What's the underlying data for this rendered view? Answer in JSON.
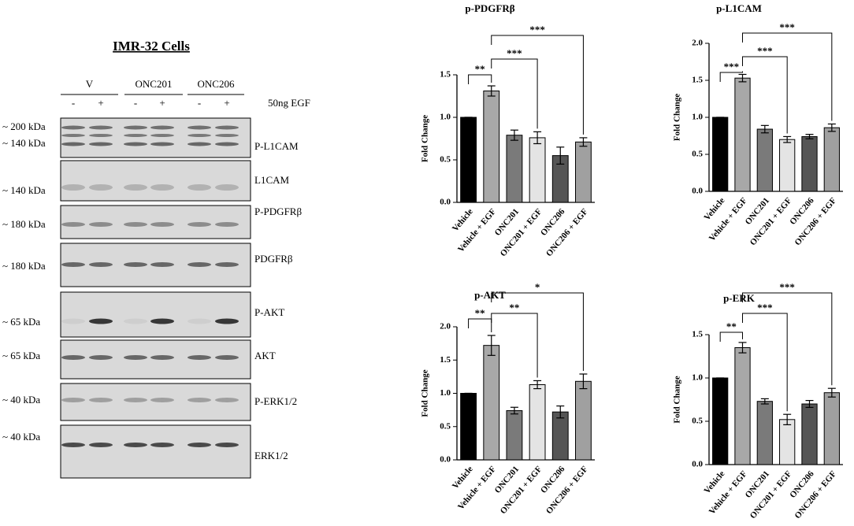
{
  "blot": {
    "title": "IMR-32 Cells",
    "groups": [
      "V",
      "ONC201",
      "ONC206"
    ],
    "lanes": [
      "-",
      "+",
      "-",
      "+",
      "-",
      "+"
    ],
    "treatment": "50ng EGF",
    "rows": [
      {
        "label": "P-L1CAM",
        "markers": [
          "~ 200 kDa",
          "~ 140 kDa"
        ]
      },
      {
        "label": "L1CAM",
        "markers": [
          "~ 140 kDa"
        ]
      },
      {
        "label": "P-PDGFRβ",
        "markers": [
          "~ 180 kDa"
        ]
      },
      {
        "label": "PDGFRβ",
        "markers": [
          "~ 180 kDa"
        ]
      },
      {
        "label": "P-AKT",
        "markers": [
          "~ 65 kDa"
        ]
      },
      {
        "label": "AKT",
        "markers": [
          "~ 65 kDa"
        ]
      },
      {
        "label": "P-ERK1/2",
        "markers": [
          "~ 40 kDa"
        ]
      },
      {
        "label": "ERK1/2",
        "markers": [
          "~ 40 kDa"
        ]
      }
    ]
  },
  "chart_data": [
    {
      "type": "bar",
      "title": "p-PDGFRβ",
      "y_label": "Fold Change",
      "categories": [
        "Vehicle",
        "Vehicle + EGF",
        "ONC201",
        "ONC201 + EGF",
        "ONC206",
        "ONC206 + EGF"
      ],
      "values": [
        1.0,
        1.31,
        0.79,
        0.76,
        0.55,
        0.71
      ],
      "errors": [
        0,
        0.06,
        0.06,
        0.07,
        0.1,
        0.05
      ],
      "colors": [
        "#000000",
        "#a8a8a8",
        "#7a7a7a",
        "#e4e4e4",
        "#555555",
        "#a0a0a0"
      ],
      "ylim": [
        0,
        1.5
      ],
      "yticks": [
        {
          "value": 0,
          "label": "0.0"
        },
        {
          "value": 0.5,
          "label": "0.5"
        },
        {
          "value": 1,
          "label": "1.0"
        },
        {
          "value": 1.5,
          "label": "1.5"
        }
      ],
      "annotations": [
        "**",
        "***",
        "***"
      ]
    },
    {
      "type": "bar",
      "title": "p-L1CAM",
      "y_label": "Fold Change",
      "categories": [
        "Vehicle",
        "Vehicle + EGF",
        "ONC201",
        "ONC201 + EGF",
        "ONC206",
        "ONC206 + EGF"
      ],
      "values": [
        1.0,
        1.53,
        0.84,
        0.7,
        0.74,
        0.86
      ],
      "errors": [
        0,
        0.05,
        0.05,
        0.04,
        0.03,
        0.05
      ],
      "colors": [
        "#000000",
        "#a8a8a8",
        "#7a7a7a",
        "#e4e4e4",
        "#555555",
        "#a0a0a0"
      ],
      "ylim": [
        0,
        2
      ],
      "yticks": [
        {
          "value": 0,
          "label": "0.0"
        },
        {
          "value": 0.5,
          "label": "0.5"
        },
        {
          "value": 1,
          "label": "1.0"
        },
        {
          "value": 1.5,
          "label": "1.5"
        },
        {
          "value": 2,
          "label": "2.0"
        }
      ],
      "annotations": [
        "***",
        "***",
        "***"
      ]
    },
    {
      "type": "bar",
      "title": "p-AKT",
      "y_label": "Fold Change",
      "categories": [
        "Vehicle",
        "Vehicle + EGF",
        "ONC201",
        "ONC201 + EGF",
        "ONC206",
        "ONC206 + EGF"
      ],
      "values": [
        1.0,
        1.72,
        0.74,
        1.13,
        0.72,
        1.18
      ],
      "errors": [
        0,
        0.15,
        0.05,
        0.06,
        0.09,
        0.11
      ],
      "colors": [
        "#000000",
        "#a8a8a8",
        "#7a7a7a",
        "#e4e4e4",
        "#555555",
        "#a0a0a0"
      ],
      "ylim": [
        0,
        2
      ],
      "yticks": [
        {
          "value": 0,
          "label": "0.0"
        },
        {
          "value": 0.5,
          "label": "0.5"
        },
        {
          "value": 1,
          "label": "1.0"
        },
        {
          "value": 1.5,
          "label": "1.5"
        },
        {
          "value": 2,
          "label": "2.0"
        }
      ],
      "annotations": [
        "**",
        "**",
        "*"
      ]
    },
    {
      "type": "bar",
      "title": "p-ERK",
      "y_label": "Fold Change",
      "categories": [
        "Vehicle",
        "Vehicle + EGF",
        "ONC201",
        "ONC201 + EGF",
        "ONC206",
        "ONC206 + EGF"
      ],
      "values": [
        1.0,
        1.35,
        0.73,
        0.52,
        0.7,
        0.83
      ],
      "errors": [
        0,
        0.06,
        0.03,
        0.06,
        0.04,
        0.05
      ],
      "colors": [
        "#000000",
        "#a8a8a8",
        "#7a7a7a",
        "#e4e4e4",
        "#555555",
        "#a0a0a0"
      ],
      "ylim": [
        0,
        1.5
      ],
      "yticks": [
        {
          "value": 0,
          "label": "0.0"
        },
        {
          "value": 0.5,
          "label": "0.5"
        },
        {
          "value": 1,
          "label": "1.0"
        },
        {
          "value": 1.5,
          "label": "1.5"
        }
      ],
      "annotations": [
        "**",
        "***",
        "***"
      ]
    }
  ]
}
